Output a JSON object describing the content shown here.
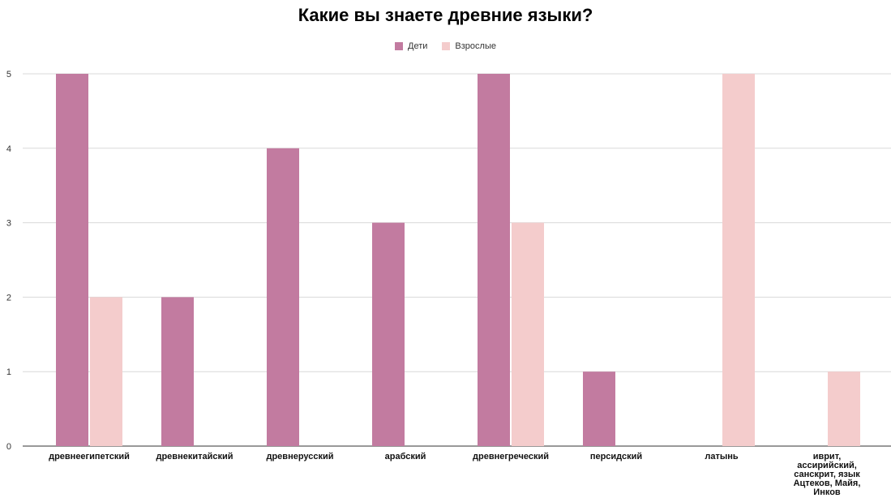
{
  "chart_data": {
    "type": "bar",
    "title": "Какие вы знаете древние языки?",
    "categories": [
      "древнеегипетский",
      "древнекитайский",
      "древнерусский",
      "арабский",
      "древнегреческий",
      "персидский",
      "латынь",
      "иврит, ассирийский, санскрит, язык Ацтеков, Майя, Инков"
    ],
    "category_lines": [
      [
        "древнеегипетский"
      ],
      [
        "древнекитайский"
      ],
      [
        "древнерусский"
      ],
      [
        "арабский"
      ],
      [
        "древнегреческий"
      ],
      [
        "персидский"
      ],
      [
        "латынь"
      ],
      [
        "иврит,",
        "ассирийский,",
        "санскрит, язык",
        "Ацтеков, Майя,",
        "Инков"
      ]
    ],
    "series": [
      {
        "name": "Дети",
        "color": "#c27ba0",
        "values": [
          5,
          2,
          4,
          3,
          5,
          1,
          0,
          0
        ]
      },
      {
        "name": "Взрослые",
        "color": "#f4cccc",
        "values": [
          2,
          0,
          0,
          0,
          3,
          0,
          5,
          1
        ]
      }
    ],
    "ylim": [
      0,
      5
    ],
    "yticks": [
      "0",
      "1",
      "2",
      "3",
      "4",
      "5"
    ],
    "xlabel": "",
    "ylabel": "",
    "grid": true,
    "legend_position": "top"
  }
}
